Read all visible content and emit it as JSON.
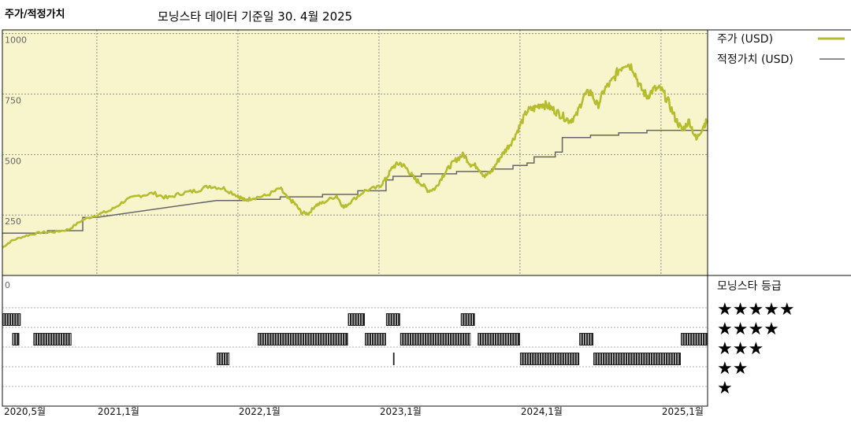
{
  "header": {
    "title": "주가/적정가치",
    "subtitle": "모닝스타 데이터 기준일 30. 4월 2025"
  },
  "legend": {
    "price_label": "주가 (USD)",
    "fair_label": "적정가치 (USD)",
    "price_color": "#b5bd2e",
    "fair_color": "#666666"
  },
  "rating": {
    "title": "모닝스타 등급",
    "stars": [
      "★★★★★",
      "★★★★",
      "★★★",
      "★★",
      "★"
    ]
  },
  "chart_data": {
    "type": "line",
    "x_axis": {
      "tick_labels": [
        "2020,5월",
        "2021,1월",
        "2022,1월",
        "2023,1월",
        "2024,1월",
        "2025,1월"
      ],
      "tick_dates": [
        2020.33,
        2021.0,
        2022.0,
        2023.0,
        2024.0,
        2025.0
      ],
      "range": [
        2020.33,
        2025.33
      ]
    },
    "y_axis": {
      "ticks": [
        0,
        250,
        500,
        750,
        1000
      ],
      "tick_labels": [
        "0",
        "250",
        "500",
        "750",
        "1000"
      ],
      "range": [
        0,
        1000
      ]
    },
    "series": [
      {
        "name": "주가 (USD)",
        "points": [
          [
            2020.33,
            115
          ],
          [
            2020.4,
            145
          ],
          [
            2020.5,
            165
          ],
          [
            2020.6,
            178
          ],
          [
            2020.7,
            180
          ],
          [
            2020.8,
            190
          ],
          [
            2020.9,
            230
          ],
          [
            2021.0,
            250
          ],
          [
            2021.1,
            270
          ],
          [
            2021.2,
            310
          ],
          [
            2021.3,
            330
          ],
          [
            2021.4,
            340
          ],
          [
            2021.5,
            320
          ],
          [
            2021.6,
            340
          ],
          [
            2021.7,
            350
          ],
          [
            2021.8,
            370
          ],
          [
            2021.9,
            360
          ],
          [
            2022.0,
            330
          ],
          [
            2022.05,
            310
          ],
          [
            2022.1,
            320
          ],
          [
            2022.2,
            330
          ],
          [
            2022.3,
            360
          ],
          [
            2022.35,
            320
          ],
          [
            2022.4,
            300
          ],
          [
            2022.45,
            260
          ],
          [
            2022.5,
            255
          ],
          [
            2022.55,
            290
          ],
          [
            2022.6,
            300
          ],
          [
            2022.7,
            330
          ],
          [
            2022.75,
            280
          ],
          [
            2022.8,
            305
          ],
          [
            2022.9,
            350
          ],
          [
            2023.0,
            365
          ],
          [
            2023.05,
            400
          ],
          [
            2023.1,
            450
          ],
          [
            2023.15,
            465
          ],
          [
            2023.2,
            440
          ],
          [
            2023.25,
            400
          ],
          [
            2023.3,
            380
          ],
          [
            2023.35,
            350
          ],
          [
            2023.4,
            360
          ],
          [
            2023.45,
            410
          ],
          [
            2023.5,
            450
          ],
          [
            2023.55,
            480
          ],
          [
            2023.6,
            500
          ],
          [
            2023.65,
            460
          ],
          [
            2023.7,
            450
          ],
          [
            2023.75,
            410
          ],
          [
            2023.8,
            430
          ],
          [
            2023.85,
            480
          ],
          [
            2023.9,
            520
          ],
          [
            2023.95,
            560
          ],
          [
            2024.0,
            620
          ],
          [
            2024.05,
            680
          ],
          [
            2024.1,
            690
          ],
          [
            2024.15,
            710
          ],
          [
            2024.2,
            700
          ],
          [
            2024.25,
            680
          ],
          [
            2024.3,
            660
          ],
          [
            2024.35,
            640
          ],
          [
            2024.4,
            660
          ],
          [
            2024.45,
            740
          ],
          [
            2024.5,
            760
          ],
          [
            2024.55,
            700
          ],
          [
            2024.6,
            770
          ],
          [
            2024.65,
            800
          ],
          [
            2024.7,
            850
          ],
          [
            2024.75,
            880
          ],
          [
            2024.8,
            860
          ],
          [
            2024.85,
            780
          ],
          [
            2024.9,
            740
          ],
          [
            2024.95,
            770
          ],
          [
            2025.0,
            770
          ],
          [
            2025.05,
            720
          ],
          [
            2025.1,
            650
          ],
          [
            2025.15,
            600
          ],
          [
            2025.2,
            640
          ],
          [
            2025.25,
            560
          ],
          [
            2025.3,
            620
          ],
          [
            2025.33,
            640
          ]
        ]
      },
      {
        "name": "적정가치 (USD)",
        "points": [
          [
            2020.33,
            175
          ],
          [
            2020.65,
            175
          ],
          [
            2020.65,
            185
          ],
          [
            2020.9,
            185
          ],
          [
            2020.9,
            240
          ],
          [
            2021.0,
            240
          ],
          [
            2021.85,
            310
          ],
          [
            2022.05,
            310
          ],
          [
            2022.05,
            315
          ],
          [
            2022.3,
            315
          ],
          [
            2022.3,
            325
          ],
          [
            2022.6,
            325
          ],
          [
            2022.6,
            335
          ],
          [
            2022.85,
            335
          ],
          [
            2022.85,
            350
          ],
          [
            2023.05,
            350
          ],
          [
            2023.05,
            395
          ],
          [
            2023.1,
            395
          ],
          [
            2023.1,
            410
          ],
          [
            2023.3,
            410
          ],
          [
            2023.3,
            420
          ],
          [
            2023.55,
            420
          ],
          [
            2023.55,
            430
          ],
          [
            2023.8,
            430
          ],
          [
            2023.8,
            440
          ],
          [
            2023.95,
            440
          ],
          [
            2023.95,
            455
          ],
          [
            2024.05,
            455
          ],
          [
            2024.05,
            465
          ],
          [
            2024.1,
            465
          ],
          [
            2024.1,
            490
          ],
          [
            2024.25,
            490
          ],
          [
            2024.25,
            510
          ],
          [
            2024.3,
            510
          ],
          [
            2024.3,
            570
          ],
          [
            2024.5,
            570
          ],
          [
            2024.5,
            580
          ],
          [
            2024.7,
            580
          ],
          [
            2024.7,
            590
          ],
          [
            2024.9,
            590
          ],
          [
            2024.9,
            600
          ],
          [
            2025.33,
            600
          ]
        ]
      }
    ],
    "rating_history": [
      {
        "stars": 5,
        "periods": []
      },
      {
        "stars": 4,
        "periods": [
          [
            2020.33,
            2020.46
          ],
          [
            2022.78,
            2022.9
          ],
          [
            2023.05,
            2023.15
          ],
          [
            2023.58,
            2023.68
          ]
        ]
      },
      {
        "stars": 3,
        "periods": [
          [
            2020.4,
            2020.45
          ],
          [
            2020.55,
            2020.82
          ],
          [
            2022.14,
            2022.78
          ],
          [
            2022.9,
            2023.05
          ],
          [
            2023.15,
            2023.65
          ],
          [
            2023.7,
            2024.0
          ],
          [
            2024.42,
            2024.52
          ],
          [
            2025.14,
            2025.33
          ]
        ]
      },
      {
        "stars": 2,
        "periods": [
          [
            2021.85,
            2021.94
          ],
          [
            2023.1,
            2023.11
          ],
          [
            2024.0,
            2024.42
          ],
          [
            2024.52,
            2025.14
          ]
        ]
      },
      {
        "stars": 1,
        "periods": []
      }
    ],
    "grid": true,
    "legend_position": "right"
  }
}
